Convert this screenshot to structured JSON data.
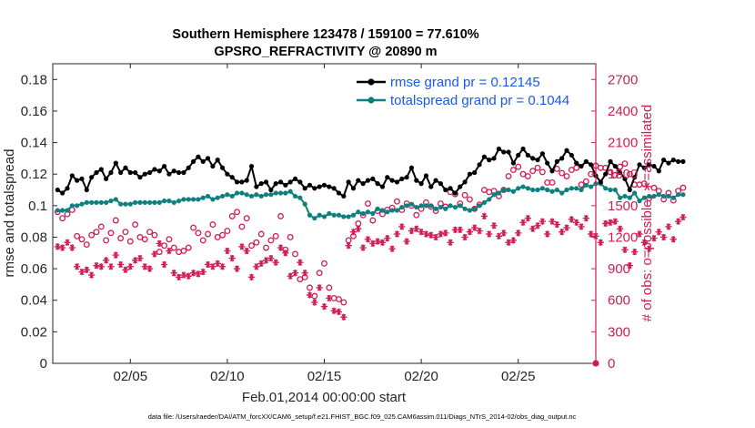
{
  "chart_data": {
    "type": "line",
    "title": "Southern Hemisphere 123478 / 159100 = 77.610%",
    "subtitle": "GPSRO_REFRACTIVITY @ 20890 m",
    "xlabel": "Feb.01,2014 00:00:00 start",
    "ylabel_left": "rmse and totalspread",
    "ylabel_right": "# of obs: o=possible; ∗=assimilated",
    "x_ticks": [
      "02/05",
      "02/10",
      "02/15",
      "02/20",
      "02/25"
    ],
    "x_range_days": [
      1.0,
      29.0
    ],
    "x_tick_days": [
      5,
      10,
      15,
      20,
      25
    ],
    "y_left_range": [
      0,
      0.19
    ],
    "y_left_ticks": [
      "0",
      "0.02",
      "0.04",
      "0.06",
      "0.08",
      "0.1",
      "0.12",
      "0.14",
      "0.16",
      "0.18"
    ],
    "y_right_range": [
      0,
      2850
    ],
    "y_right_ticks": [
      "0",
      "300",
      "600",
      "900",
      "1200",
      "1500",
      "1800",
      "2100",
      "2400",
      "2700"
    ],
    "grid": false,
    "legend_position": "top-right",
    "footer": "data file: /Users/raeder/DAI/ATM_forcXX/CAM6_setup/f.e21.FHIST_BGC.f09_025.CAM6assim.011/Diags_NTrS_2014-02/obs_diag_output.nc",
    "colors": {
      "rmse": "#000000",
      "spread": "#0e8080",
      "obs": "#d01c55",
      "legend_text": "#1a5ae6"
    },
    "series": [
      {
        "name": "rmse grand pr = 0.12145",
        "marker": "filled-circle",
        "x_start_day": 1.25,
        "x_step_day": 0.25,
        "values": [
          0.11,
          0.108,
          0.111,
          0.119,
          0.116,
          0.117,
          0.11,
          0.118,
          0.121,
          0.123,
          0.117,
          0.121,
          0.127,
          0.121,
          0.124,
          0.121,
          0.121,
          0.118,
          0.12,
          0.121,
          0.123,
          0.122,
          0.125,
          0.12,
          0.122,
          0.121,
          0.121,
          0.124,
          0.128,
          0.131,
          0.128,
          0.13,
          0.125,
          0.129,
          0.124,
          0.12,
          0.118,
          0.115,
          0.115,
          0.116,
          0.125,
          0.112,
          0.114,
          0.115,
          0.11,
          0.114,
          0.115,
          0.113,
          0.115,
          0.117,
          0.115,
          0.111,
          0.113,
          0.111,
          0.112,
          0.113,
          0.112,
          0.111,
          0.108,
          0.106,
          0.115,
          0.111,
          0.116,
          0.114,
          0.116,
          0.117,
          0.114,
          0.112,
          0.118,
          0.116,
          0.115,
          0.117,
          0.118,
          0.124,
          0.116,
          0.114,
          0.119,
          0.112,
          0.116,
          0.114,
          0.11,
          0.111,
          0.108,
          0.112,
          0.115,
          0.12,
          0.121,
          0.126,
          0.131,
          0.129,
          0.13,
          0.136,
          0.134,
          0.134,
          0.127,
          0.132,
          0.136,
          0.132,
          0.13,
          0.129,
          0.133,
          0.127,
          0.122,
          0.128,
          0.13,
          0.135,
          0.132,
          0.127,
          0.125,
          0.128,
          0.126,
          0.119,
          0.115,
          0.12,
          0.128,
          0.125,
          0.121,
          0.117,
          0.11,
          0.118,
          0.126,
          0.124,
          0.126,
          0.125,
          0.122,
          0.129,
          0.127,
          0.129,
          0.128,
          0.128
        ]
      },
      {
        "name": "totalspread grand pr = 0.1044",
        "marker": "filled-circle",
        "x_start_day": 1.25,
        "x_step_day": 0.25,
        "values": [
          0.097,
          0.097,
          0.097,
          0.1,
          0.1,
          0.101,
          0.102,
          0.102,
          0.102,
          0.102,
          0.102,
          0.103,
          0.104,
          0.101,
          0.101,
          0.101,
          0.102,
          0.102,
          0.102,
          0.102,
          0.102,
          0.102,
          0.103,
          0.103,
          0.102,
          0.103,
          0.104,
          0.104,
          0.104,
          0.104,
          0.105,
          0.106,
          0.104,
          0.105,
          0.106,
          0.107,
          0.106,
          0.108,
          0.108,
          0.107,
          0.106,
          0.107,
          0.106,
          0.107,
          0.107,
          0.108,
          0.108,
          0.108,
          0.109,
          0.106,
          0.105,
          0.101,
          0.094,
          0.092,
          0.094,
          0.093,
          0.095,
          0.094,
          0.094,
          0.093,
          0.093,
          0.094,
          0.096,
          0.095,
          0.096,
          0.095,
          0.098,
          0.097,
          0.096,
          0.097,
          0.097,
          0.099,
          0.1,
          0.101,
          0.099,
          0.1,
          0.1,
          0.1,
          0.098,
          0.099,
          0.098,
          0.1,
          0.099,
          0.1,
          0.098,
          0.097,
          0.098,
          0.1,
          0.102,
          0.104,
          0.107,
          0.108,
          0.11,
          0.11,
          0.109,
          0.111,
          0.112,
          0.111,
          0.11,
          0.11,
          0.111,
          0.11,
          0.109,
          0.11,
          0.108,
          0.11,
          0.111,
          0.111,
          0.11,
          0.113,
          0.112,
          0.114,
          0.114,
          0.111,
          0.11,
          0.11,
          0.105,
          0.106,
          0.105,
          0.108,
          0.103,
          0.105,
          0.106,
          0.106,
          0.107,
          0.106,
          0.106,
          0.105,
          0.107,
          0.107
        ]
      },
      {
        "name": "possible",
        "marker": "open-circle",
        "axis": "right",
        "x_start_day": 1.25,
        "x_step_day": 0.25,
        "values": [
          1440,
          1380,
          1420,
          1460,
          1210,
          1180,
          1130,
          1220,
          1250,
          1300,
          1170,
          1240,
          1360,
          1190,
          1250,
          1160,
          1320,
          1200,
          1180,
          1250,
          1220,
          1060,
          1120,
          1180,
          1100,
          1060,
          1070,
          1100,
          1290,
          1240,
          1170,
          1230,
          1320,
          1200,
          1220,
          1260,
          1400,
          1440,
          1300,
          1380,
          1120,
          1150,
          1230,
          1100,
          1170,
          1210,
          1400,
          1080,
          1200,
          1040,
          800,
          820,
          720,
          640,
          860,
          950,
          720,
          620,
          610,
          580,
          1170,
          1210,
          1330,
          1410,
          1520,
          1360,
          1450,
          1420,
          1460,
          1480,
          1540,
          1460,
          1520,
          1500,
          1410,
          1470,
          1530,
          1490,
          1450,
          1520,
          1490,
          1630,
          1610,
          1520,
          1600,
          1560,
          1470,
          1510,
          1650,
          1630,
          1640,
          1590,
          1650,
          1780,
          1840,
          1870,
          1800,
          1780,
          1830,
          1860,
          1820,
          1720,
          1720,
          1850,
          1810,
          1780,
          1840,
          1860,
          1700,
          1730,
          1800,
          1880,
          1860,
          1860,
          1820,
          1790,
          1870,
          1900,
          1800,
          1700,
          1700,
          1710,
          1570,
          1670,
          1640,
          1560,
          1620,
          1550,
          1640,
          1670
        ]
      },
      {
        "name": "assimilated",
        "marker": "asterisk",
        "axis": "right",
        "x_start_day": 1.25,
        "x_step_day": 0.25,
        "values": [
          1110,
          1100,
          1150,
          1100,
          920,
          870,
          890,
          840,
          930,
          920,
          980,
          920,
          1030,
          940,
          890,
          920,
          980,
          1000,
          920,
          900,
          1040,
          1140,
          940,
          1070,
          860,
          820,
          840,
          830,
          860,
          850,
          870,
          940,
          920,
          950,
          920,
          1070,
          1000,
          900,
          1110,
          1070,
          820,
          920,
          950,
          980,
          1000,
          960,
          1100,
          1050,
          830,
          860,
          960,
          860,
          650,
          580,
          720,
          540,
          620,
          500,
          490,
          440,
          1120,
          1250,
          1280,
          1100,
          1180,
          1140,
          1160,
          1150,
          1190,
          1090,
          1230,
          1300,
          1160,
          1260,
          1280,
          1250,
          1230,
          1220,
          1200,
          1230,
          1240,
          1150,
          1270,
          1270,
          1200,
          1250,
          1290,
          1260,
          1400,
          1230,
          1310,
          1210,
          1240,
          1150,
          1170,
          1240,
          1340,
          1380,
          1280,
          1310,
          1350,
          1230,
          1350,
          1320,
          1250,
          1290,
          1370,
          1340,
          1300,
          1380,
          1230,
          1210,
          1150,
          1330,
          1340,
          1350,
          1280,
          1080,
          930,
          1060,
          1230,
          1150,
          1090,
          1190,
          1250,
          1200,
          1300,
          1180,
          1350,
          1390
        ]
      }
    ]
  }
}
